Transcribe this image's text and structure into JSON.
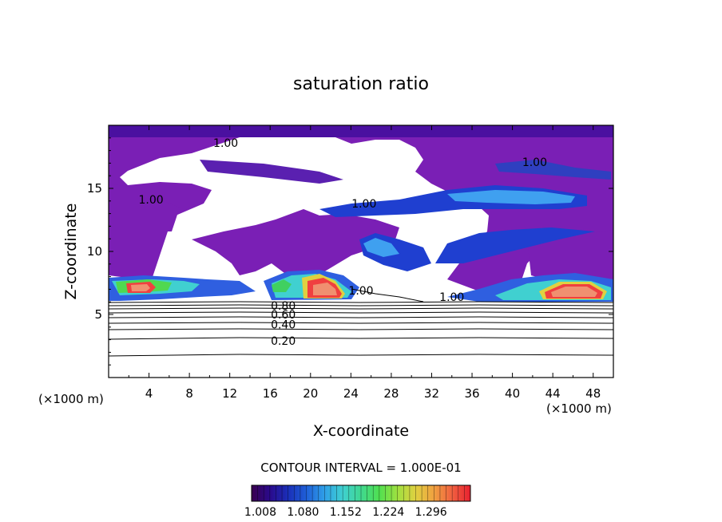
{
  "chart_data": {
    "type": "heatmap",
    "title": "saturation ratio",
    "xlabel": "X-coordinate",
    "ylabel": "Z-coordinate",
    "x_unit_label_left": "(×1000 m)",
    "x_unit_label_right": "(×1000 m)",
    "xlim": [
      0,
      50
    ],
    "ylim": [
      0,
      20
    ],
    "x_ticks": [
      4,
      8,
      12,
      16,
      20,
      24,
      28,
      32,
      36,
      40,
      44,
      48
    ],
    "y_ticks": [
      5,
      10,
      15
    ],
    "contour_interval_label": "CONTOUR INTERVAL = 1.000E-01",
    "contour_labels": [
      {
        "text": "1.00",
        "x": 11.6,
        "y": 18.6
      },
      {
        "text": "1.00",
        "x": 42.2,
        "y": 17.1
      },
      {
        "text": "1.00",
        "x": 4.2,
        "y": 14.1
      },
      {
        "text": "1.00",
        "x": 25.3,
        "y": 13.8
      },
      {
        "text": "1.00",
        "x": 25.0,
        "y": 6.9
      },
      {
        "text": "1.00",
        "x": 34.0,
        "y": 6.4
      },
      {
        "text": "0.80",
        "x": 17.3,
        "y": 5.7
      },
      {
        "text": "0.60",
        "x": 17.3,
        "y": 5.0
      },
      {
        "text": "0.40",
        "x": 17.3,
        "y": 4.2
      },
      {
        "text": "0.20",
        "x": 17.3,
        "y": 2.9
      }
    ],
    "colorbar": {
      "tick_labels": [
        "1.008",
        "1.080",
        "1.152",
        "1.224",
        "1.296"
      ],
      "colors": [
        "#3a0050",
        "#2a0a8c",
        "#1a2fb8",
        "#1f5fd8",
        "#2fa0e8",
        "#3fd0d0",
        "#40d890",
        "#50e050",
        "#a0e040",
        "#e0d040",
        "#f0a040",
        "#f06040",
        "#e82030"
      ]
    },
    "colors": {
      "base": "#7a1fb5",
      "deep_purple": "#5a0f8c",
      "blue": "#1f3fd0",
      "light_blue": "#3fa0f0",
      "cyan": "#40e0e0",
      "green": "#40d060",
      "yellow": "#f0e040",
      "orange": "#f09040",
      "red": "#f04040",
      "salmon": "#f09070"
    }
  }
}
